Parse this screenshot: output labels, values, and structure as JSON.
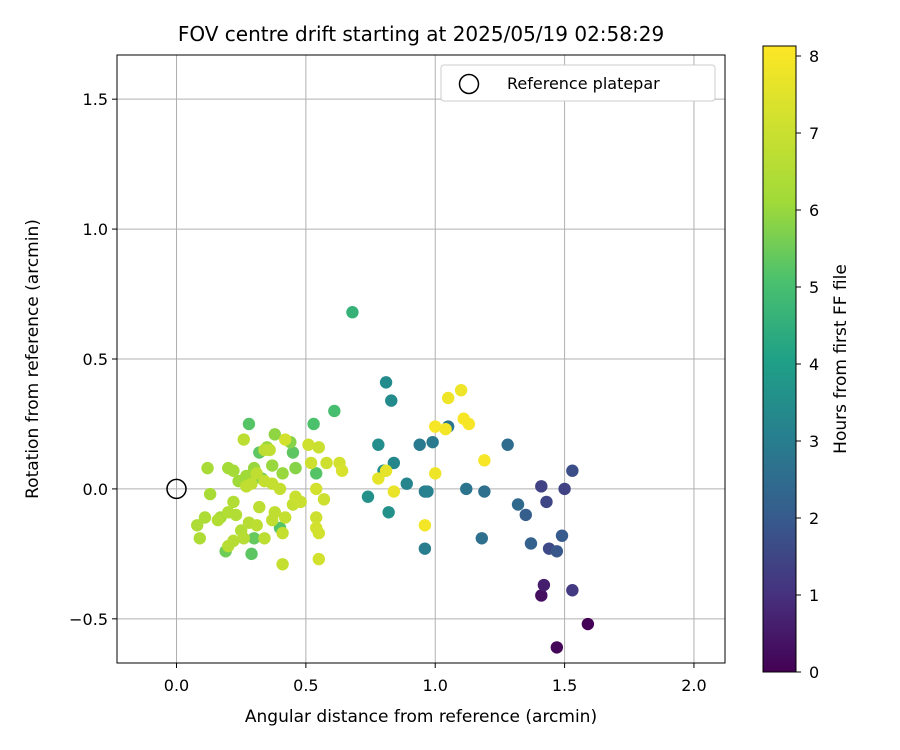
{
  "chart_data": {
    "type": "scatter",
    "title": "FOV centre drift starting at 2025/05/19 02:58:29",
    "xlabel": "Angular distance from reference (arcmin)",
    "ylabel": "Rotation from reference (arcmin)",
    "xlim": [
      -0.23,
      2.12
    ],
    "ylim": [
      -0.67,
      1.67
    ],
    "xticks": [
      0.0,
      0.5,
      1.0,
      1.5,
      2.0
    ],
    "xtick_labels": [
      "0.0",
      "0.5",
      "1.0",
      "1.5",
      "2.0"
    ],
    "yticks": [
      -0.5,
      0.0,
      0.5,
      1.0,
      1.5
    ],
    "ytick_labels": [
      "−0.5",
      "0.0",
      "0.5",
      "1.0",
      "1.5"
    ],
    "grid": true,
    "legend": {
      "position": "top-right",
      "entries": [
        {
          "label": "Reference platepar",
          "marker": "open-circle"
        }
      ]
    },
    "reference_point": {
      "x": 0.0,
      "y": 0.0
    },
    "colorbar": {
      "label": "Hours from first FF file",
      "colormap": "viridis",
      "range": [
        0,
        8.13
      ],
      "ticks": [
        0,
        1,
        2,
        3,
        4,
        5,
        6,
        7,
        8
      ],
      "tick_labels": [
        "0",
        "1",
        "2",
        "3",
        "4",
        "5",
        "6",
        "7",
        "8"
      ]
    },
    "points": [
      {
        "x": 1.59,
        "y": -0.52,
        "c": 0.05
      },
      {
        "x": 1.47,
        "y": -0.61,
        "c": 0.1
      },
      {
        "x": 1.41,
        "y": -0.41,
        "c": 0.3
      },
      {
        "x": 1.42,
        "y": -0.37,
        "c": 0.6
      },
      {
        "x": 1.53,
        "y": -0.39,
        "c": 1.2
      },
      {
        "x": 1.41,
        "y": 0.01,
        "c": 1.4
      },
      {
        "x": 1.43,
        "y": -0.05,
        "c": 1.5
      },
      {
        "x": 1.5,
        "y": 0.0,
        "c": 1.4
      },
      {
        "x": 1.53,
        "y": 0.07,
        "c": 1.7
      },
      {
        "x": 1.44,
        "y": -0.23,
        "c": 1.6
      },
      {
        "x": 1.47,
        "y": -0.24,
        "c": 1.9
      },
      {
        "x": 1.49,
        "y": -0.18,
        "c": 2.0
      },
      {
        "x": 1.35,
        "y": -0.1,
        "c": 2.1
      },
      {
        "x": 1.37,
        "y": -0.21,
        "c": 2.2
      },
      {
        "x": 1.32,
        "y": -0.06,
        "c": 2.4
      },
      {
        "x": 1.28,
        "y": 0.17,
        "c": 2.5
      },
      {
        "x": 1.18,
        "y": -0.19,
        "c": 2.6
      },
      {
        "x": 1.19,
        "y": -0.01,
        "c": 2.6
      },
      {
        "x": 1.12,
        "y": 0.0,
        "c": 2.7
      },
      {
        "x": 1.05,
        "y": 0.24,
        "c": 2.8
      },
      {
        "x": 0.99,
        "y": 0.18,
        "c": 2.9
      },
      {
        "x": 0.94,
        "y": 0.17,
        "c": 2.9
      },
      {
        "x": 0.96,
        "y": -0.23,
        "c": 3.0
      },
      {
        "x": 0.96,
        "y": -0.01,
        "c": 3.0
      },
      {
        "x": 0.97,
        "y": -0.01,
        "c": 3.1
      },
      {
        "x": 0.89,
        "y": 0.02,
        "c": 3.2
      },
      {
        "x": 0.84,
        "y": 0.1,
        "c": 3.3
      },
      {
        "x": 0.83,
        "y": 0.34,
        "c": 3.4
      },
      {
        "x": 0.81,
        "y": 0.41,
        "c": 3.4
      },
      {
        "x": 0.78,
        "y": 0.17,
        "c": 3.5
      },
      {
        "x": 0.8,
        "y": 0.07,
        "c": 3.5
      },
      {
        "x": 0.82,
        "y": -0.09,
        "c": 3.6
      },
      {
        "x": 0.74,
        "y": -0.03,
        "c": 3.6
      },
      {
        "x": 0.68,
        "y": 0.68,
        "c": 4.6
      },
      {
        "x": 0.61,
        "y": 0.3,
        "c": 5.0
      },
      {
        "x": 0.53,
        "y": 0.25,
        "c": 5.1
      },
      {
        "x": 0.54,
        "y": 0.06,
        "c": 5.2
      },
      {
        "x": 0.45,
        "y": 0.14,
        "c": 5.3
      },
      {
        "x": 0.28,
        "y": 0.25,
        "c": 5.2
      },
      {
        "x": 0.4,
        "y": -0.15,
        "c": 5.2
      },
      {
        "x": 0.29,
        "y": -0.25,
        "c": 5.3
      },
      {
        "x": 0.3,
        "y": -0.19,
        "c": 5.4
      },
      {
        "x": 0.19,
        "y": -0.24,
        "c": 5.5
      },
      {
        "x": 0.32,
        "y": 0.14,
        "c": 5.3
      },
      {
        "x": 0.33,
        "y": 0.04,
        "c": 5.6
      },
      {
        "x": 0.46,
        "y": 0.08,
        "c": 5.8
      },
      {
        "x": 0.44,
        "y": 0.18,
        "c": 5.8
      },
      {
        "x": 0.38,
        "y": 0.21,
        "c": 5.9
      },
      {
        "x": 0.35,
        "y": 0.16,
        "c": 6.0
      },
      {
        "x": 0.41,
        "y": 0.06,
        "c": 6.0
      },
      {
        "x": 0.37,
        "y": 0.09,
        "c": 6.0
      },
      {
        "x": 0.3,
        "y": 0.08,
        "c": 6.0
      },
      {
        "x": 0.27,
        "y": 0.05,
        "c": 6.1
      },
      {
        "x": 0.24,
        "y": 0.03,
        "c": 6.1
      },
      {
        "x": 0.22,
        "y": 0.07,
        "c": 6.2
      },
      {
        "x": 0.2,
        "y": 0.08,
        "c": 6.2
      },
      {
        "x": 0.12,
        "y": 0.08,
        "c": 6.3
      },
      {
        "x": 0.13,
        "y": -0.02,
        "c": 6.3
      },
      {
        "x": 0.17,
        "y": -0.11,
        "c": 6.3
      },
      {
        "x": 0.11,
        "y": -0.11,
        "c": 6.4
      },
      {
        "x": 0.08,
        "y": -0.14,
        "c": 6.4
      },
      {
        "x": 0.09,
        "y": -0.19,
        "c": 6.4
      },
      {
        "x": 0.16,
        "y": -0.12,
        "c": 6.5
      },
      {
        "x": 0.2,
        "y": -0.09,
        "c": 6.5
      },
      {
        "x": 0.22,
        "y": -0.05,
        "c": 6.5
      },
      {
        "x": 0.23,
        "y": -0.1,
        "c": 6.5
      },
      {
        "x": 0.25,
        "y": -0.16,
        "c": 6.5
      },
      {
        "x": 0.22,
        "y": -0.2,
        "c": 6.6
      },
      {
        "x": 0.2,
        "y": -0.22,
        "c": 6.6
      },
      {
        "x": 0.26,
        "y": -0.19,
        "c": 6.6
      },
      {
        "x": 0.28,
        "y": -0.13,
        "c": 6.6
      },
      {
        "x": 0.31,
        "y": -0.14,
        "c": 6.7
      },
      {
        "x": 0.32,
        "y": -0.07,
        "c": 6.7
      },
      {
        "x": 0.34,
        "y": -0.19,
        "c": 6.7
      },
      {
        "x": 0.37,
        "y": -0.12,
        "c": 6.8
      },
      {
        "x": 0.38,
        "y": -0.09,
        "c": 6.8
      },
      {
        "x": 0.41,
        "y": -0.17,
        "c": 6.9
      },
      {
        "x": 0.42,
        "y": -0.11,
        "c": 6.9
      },
      {
        "x": 0.41,
        "y": -0.29,
        "c": 6.9
      },
      {
        "x": 0.45,
        "y": -0.06,
        "c": 6.9
      },
      {
        "x": 0.46,
        "y": -0.03,
        "c": 7.0
      },
      {
        "x": 0.48,
        "y": -0.05,
        "c": 7.0
      },
      {
        "x": 0.4,
        "y": 0.0,
        "c": 6.9
      },
      {
        "x": 0.37,
        "y": 0.02,
        "c": 6.9
      },
      {
        "x": 0.34,
        "y": 0.03,
        "c": 6.9
      },
      {
        "x": 0.29,
        "y": 0.02,
        "c": 6.8
      },
      {
        "x": 0.27,
        "y": 0.01,
        "c": 6.8
      },
      {
        "x": 0.31,
        "y": 0.06,
        "c": 6.8
      },
      {
        "x": 0.26,
        "y": 0.19,
        "c": 6.7
      },
      {
        "x": 0.34,
        "y": 0.15,
        "c": 6.7
      },
      {
        "x": 0.36,
        "y": 0.15,
        "c": 6.8
      },
      {
        "x": 0.42,
        "y": 0.19,
        "c": 7.2
      },
      {
        "x": 0.51,
        "y": 0.17,
        "c": 7.1
      },
      {
        "x": 0.55,
        "y": 0.16,
        "c": 7.0
      },
      {
        "x": 0.52,
        "y": 0.1,
        "c": 7.1
      },
      {
        "x": 0.58,
        "y": 0.1,
        "c": 7.1
      },
      {
        "x": 0.63,
        "y": 0.1,
        "c": 7.2
      },
      {
        "x": 0.64,
        "y": 0.07,
        "c": 7.3
      },
      {
        "x": 0.54,
        "y": 0.0,
        "c": 7.2
      },
      {
        "x": 0.57,
        "y": -0.04,
        "c": 7.1
      },
      {
        "x": 0.54,
        "y": -0.11,
        "c": 7.1
      },
      {
        "x": 0.54,
        "y": -0.15,
        "c": 7.2
      },
      {
        "x": 0.55,
        "y": -0.17,
        "c": 7.2
      },
      {
        "x": 0.55,
        "y": -0.27,
        "c": 7.2
      },
      {
        "x": 0.78,
        "y": 0.04,
        "c": 7.6
      },
      {
        "x": 0.81,
        "y": 0.07,
        "c": 7.6
      },
      {
        "x": 0.84,
        "y": -0.01,
        "c": 7.7
      },
      {
        "x": 0.96,
        "y": -0.14,
        "c": 7.9
      },
      {
        "x": 1.0,
        "y": 0.06,
        "c": 7.8
      },
      {
        "x": 1.0,
        "y": 0.24,
        "c": 8.0
      },
      {
        "x": 1.04,
        "y": 0.23,
        "c": 7.9
      },
      {
        "x": 1.05,
        "y": 0.35,
        "c": 7.8
      },
      {
        "x": 1.1,
        "y": 0.38,
        "c": 7.8
      },
      {
        "x": 1.11,
        "y": 0.27,
        "c": 8.0
      },
      {
        "x": 1.13,
        "y": 0.25,
        "c": 8.0
      },
      {
        "x": 1.19,
        "y": 0.11,
        "c": 8.0
      }
    ]
  }
}
